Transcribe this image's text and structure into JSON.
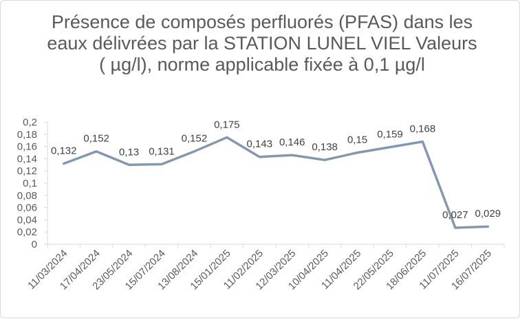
{
  "chart_data": {
    "type": "line",
    "title": "Présence de composés perfluorés (PFAS) dans les eaux délivrées par la STATION LUNEL VIEL Valeurs ( µg/l), norme applicable fixée à 0,1 µg/l",
    "categories": [
      "11/03/2024",
      "17/04/2024",
      "23/05/2024",
      "15/07/2024",
      "13/08/2024",
      "15/01/2025",
      "11/02/2025",
      "12/03/2025",
      "10/04/2025",
      "11/04/2025",
      "22/05/2025",
      "18/06/2025",
      "11/07/2025",
      "16/07/2025"
    ],
    "values": [
      0.132,
      0.152,
      0.13,
      0.131,
      0.152,
      0.175,
      0.143,
      0.146,
      0.138,
      0.15,
      0.159,
      0.168,
      0.027,
      0.029
    ],
    "value_labels": [
      "0,132",
      "0,152",
      "0,13",
      "0,131",
      "0,152",
      "0,175",
      "0,143",
      "0,146",
      "0,138",
      "0,15",
      "0,159",
      "0,168",
      "0,027",
      "0,029"
    ],
    "y_ticks": [
      "0",
      "0,02",
      "0,04",
      "0,06",
      "0,08",
      "0,1",
      "0,12",
      "0,14",
      "0,16",
      "0,18",
      "0,2"
    ],
    "ylim": [
      0,
      0.2
    ],
    "xlabel": "",
    "ylabel": "",
    "grid": false,
    "legend": "none",
    "colors": {
      "line": "#8497b0",
      "axis": "#d9d9d9",
      "text": "#595959"
    }
  }
}
